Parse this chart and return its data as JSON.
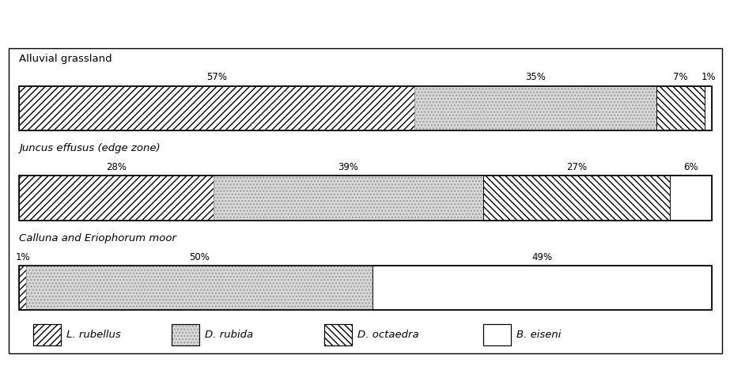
{
  "rows": [
    {
      "label_parts": [
        [
          "Alluvial grassland",
          "normal"
        ]
      ],
      "values": [
        57,
        35,
        7,
        1
      ]
    },
    {
      "label_parts": [
        [
          "Juncus effusus",
          "italic"
        ],
        [
          " (edge zone)",
          "normal"
        ]
      ],
      "values": [
        28,
        39,
        27,
        6
      ]
    },
    {
      "label_parts": [
        [
          "Calluna",
          "italic"
        ],
        [
          " and ",
          "normal"
        ],
        [
          "Eriophorum",
          "italic"
        ],
        [
          " moor",
          "normal"
        ]
      ],
      "values": [
        1,
        50,
        0,
        49
      ]
    }
  ],
  "species": [
    "L. rubellus",
    "D. rubida",
    "D. octaedra",
    "B. eiseni"
  ],
  "hatches": [
    "////",
    "....",
    "\\\\\\\\",
    ""
  ],
  "face_colors": [
    "white",
    "#d8d8d8",
    "white",
    "white"
  ],
  "hatch_colors": [
    "black",
    "#999999",
    "black",
    "black"
  ],
  "bar_height": 0.52,
  "fig_width": 9.42,
  "fig_height": 4.63,
  "background_color": "white",
  "label_fontsize": 9.5,
  "pct_fontsize": 8.5,
  "legend_fontsize": 9.5,
  "xlim": [
    -2,
    104
  ],
  "ylim": [
    -0.85,
    3.3
  ]
}
